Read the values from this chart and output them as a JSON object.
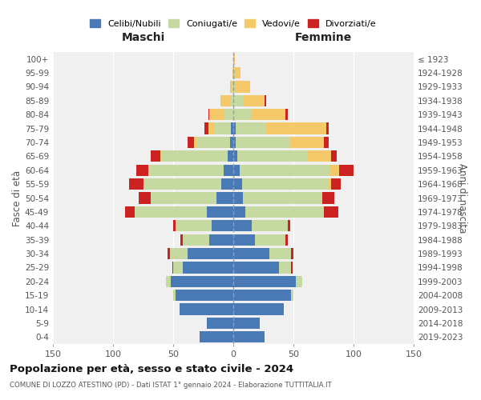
{
  "age_groups": [
    "0-4",
    "5-9",
    "10-14",
    "15-19",
    "20-24",
    "25-29",
    "30-34",
    "35-39",
    "40-44",
    "45-49",
    "50-54",
    "55-59",
    "60-64",
    "65-69",
    "70-74",
    "75-79",
    "80-84",
    "85-89",
    "90-94",
    "95-99",
    "100+"
  ],
  "birth_years": [
    "2019-2023",
    "2014-2018",
    "2009-2013",
    "2004-2008",
    "1999-2003",
    "1994-1998",
    "1989-1993",
    "1984-1988",
    "1979-1983",
    "1974-1978",
    "1969-1973",
    "1964-1968",
    "1959-1963",
    "1954-1958",
    "1949-1953",
    "1944-1948",
    "1939-1943",
    "1934-1938",
    "1929-1933",
    "1924-1928",
    "≤ 1923"
  ],
  "colors": {
    "celibi": "#4a7ab5",
    "coniugati": "#c5d9a0",
    "vedovi": "#f5c96a",
    "divorziati": "#cc2222"
  },
  "males": {
    "celibi": [
      28,
      22,
      45,
      48,
      52,
      42,
      38,
      20,
      18,
      22,
      14,
      10,
      8,
      5,
      3,
      2,
      0,
      0,
      0,
      0,
      0
    ],
    "coniugati": [
      0,
      0,
      0,
      2,
      4,
      8,
      15,
      22,
      30,
      60,
      55,
      65,
      62,
      55,
      28,
      14,
      8,
      3,
      1,
      0,
      0
    ],
    "vedovi": [
      0,
      0,
      0,
      0,
      0,
      0,
      0,
      0,
      0,
      0,
      0,
      0,
      1,
      1,
      2,
      5,
      12,
      8,
      2,
      1,
      0
    ],
    "divorziati": [
      0,
      0,
      0,
      0,
      0,
      1,
      2,
      2,
      2,
      8,
      10,
      12,
      10,
      8,
      5,
      3,
      1,
      0,
      0,
      0,
      0
    ]
  },
  "females": {
    "celibi": [
      26,
      22,
      42,
      48,
      52,
      38,
      30,
      18,
      15,
      10,
      8,
      7,
      5,
      3,
      2,
      2,
      0,
      0,
      0,
      0,
      0
    ],
    "coniugati": [
      0,
      0,
      0,
      2,
      5,
      10,
      18,
      25,
      30,
      65,
      65,
      72,
      75,
      58,
      45,
      25,
      15,
      8,
      2,
      1,
      0
    ],
    "vedovi": [
      0,
      0,
      0,
      0,
      0,
      0,
      0,
      0,
      0,
      0,
      1,
      2,
      8,
      20,
      28,
      50,
      28,
      18,
      12,
      5,
      1
    ],
    "divorziati": [
      0,
      0,
      0,
      0,
      0,
      1,
      2,
      2,
      2,
      12,
      10,
      8,
      12,
      5,
      4,
      2,
      2,
      1,
      0,
      0,
      0
    ]
  },
  "xlim": 150,
  "xtick_step": 50,
  "title": "Popolazione per età, sesso e stato civile - 2024",
  "subtitle": "COMUNE DI LOZZO ATESTINO (PD) - Dati ISTAT 1° gennaio 2024 - Elaborazione TUTTITALIA.IT",
  "xlabel_left": "Maschi",
  "xlabel_right": "Femmine",
  "ylabel_left": "Fasce di età",
  "ylabel_right": "Anni di nascita",
  "bg_color": "#f0f0f0",
  "legend_labels": [
    "Celibi/Nubili",
    "Coniugati/e",
    "Vedovi/e",
    "Divorziati/e"
  ]
}
